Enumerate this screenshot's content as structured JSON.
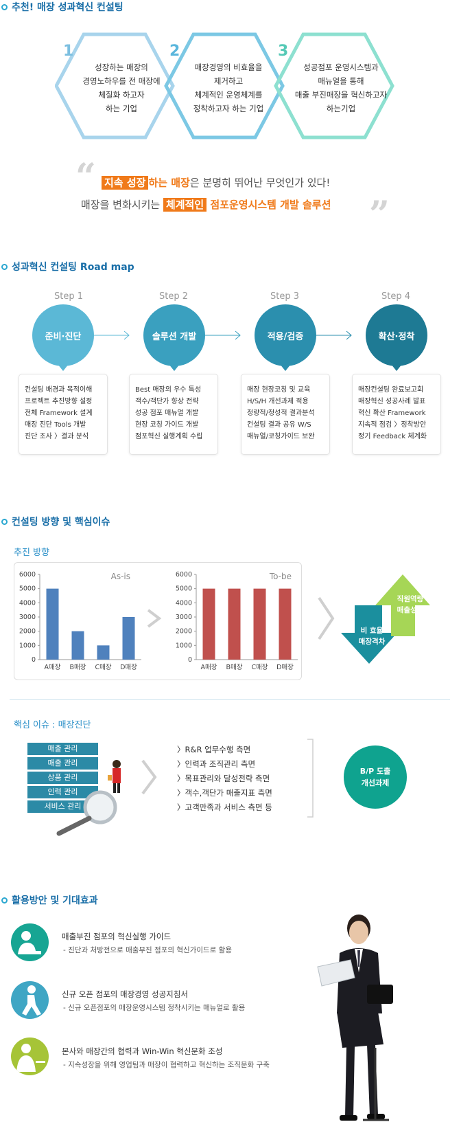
{
  "sections": {
    "recommend_title": "추천! 매장 성과혁신 컨설팅",
    "roadmap_title": "성과혁신 컨설팅 Road map",
    "direction_title": "컨설팅 방향 및 핵심이슈",
    "effects_title": "활용방안 및 기대효과"
  },
  "hexagons": [
    {
      "num": "1",
      "lines": [
        "성장하는 매장의",
        "경영노하우를 전 매장에",
        "체질화 하고자",
        "하는 기업"
      ],
      "color": "#a8d4ec"
    },
    {
      "num": "2",
      "lines": [
        "매장경영의 비효율을",
        "제거하고",
        "체계적인 운영체계를",
        "정착하고자 하는 기업"
      ],
      "color": "#7cc8e4"
    },
    {
      "num": "3",
      "lines": [
        "성공점포 운영시스템과",
        "매뉴얼을 통해",
        "매출 부진매장을 혁신하고자",
        "하는기업"
      ],
      "color": "#8de0d0"
    }
  ],
  "quote": {
    "line1_box": "지속 성장",
    "line1_orange": "하는 매장",
    "line1_rest": "은 분명히 뛰어난 무엇인가 있다!",
    "line2_prefix": "매장을 변화시키는 ",
    "line2_box": "체계적인",
    "line2_orange": " 점포운영시스템 개발 솔루션"
  },
  "roadmap": [
    {
      "step": "Step 1",
      "name": "준비·진단",
      "color": "#5bb8d6",
      "items": [
        "컨설팅 배경과 목적이해",
        "프로젝트 추진방향 설정",
        "전체 Framework 설계",
        "매장 진단 Tools 개발",
        "진단 조사 〉결과 분석"
      ]
    },
    {
      "step": "Step 2",
      "name": "솔루션 개발",
      "color": "#3aa0bf",
      "items": [
        "Best 매장의 우수 특성",
        "객수/객단가 향상 전략",
        "성공 점포 매뉴얼 개발",
        "현장 코칭 가이드 개발",
        "점포혁신 실행계획 수립"
      ]
    },
    {
      "step": "Step 3",
      "name": "적용/검증",
      "color": "#2b8fae",
      "items": [
        "매장 현장코칭 및 교육",
        "H/S/H 개선과제 적용",
        "정량적/정성적 결과분석",
        "컨설팅 결과 공유 W/S",
        "매뉴얼/코칭가이드 보완"
      ]
    },
    {
      "step": "Step 4",
      "name": "확산·정착",
      "color": "#1e7a94",
      "items": [
        "매장컨설팅 완료보고회",
        "매장혁신 성공사례 발표",
        "혁신 확산 Framework",
        "지속적 점검 〉정착방안",
        "정기 Feedback 체계화"
      ]
    }
  ],
  "direction": {
    "subtitle": "추진 방향",
    "arrow_down_label": [
      "비 효율",
      "매장격차"
    ],
    "arrow_up_label": [
      "직원역량",
      "매출성과"
    ]
  },
  "chart_data": [
    {
      "type": "bar",
      "title": "As-is",
      "categories": [
        "A매장",
        "B매장",
        "C매장",
        "D매장"
      ],
      "values": [
        5000,
        2000,
        1000,
        3000
      ],
      "ylim": [
        0,
        6000
      ],
      "yticks": [
        "0",
        "1000",
        "2000",
        "3000",
        "4000",
        "5000",
        "6000"
      ],
      "color": "#4f81bd",
      "grid": false
    },
    {
      "type": "bar",
      "title": "To-be",
      "categories": [
        "A매장",
        "B매장",
        "C매장",
        "D매장"
      ],
      "values": [
        5000,
        5000,
        5000,
        5000
      ],
      "ylim": [
        0,
        6000
      ],
      "yticks": [
        "0",
        "1000",
        "2000",
        "3000",
        "4000",
        "5000",
        "6000"
      ],
      "color": "#c0504d",
      "grid": false
    }
  ],
  "issues": {
    "subtitle": "핵심 이슈 : 매장진단",
    "bars": [
      "매출 관리",
      "매출 관리",
      "상품 관리",
      "인력 관리",
      "서비스 관리"
    ],
    "items": [
      "〉R&R 업무수행 측면",
      "〉인력과 조직관리 측면",
      "〉목표관리와 달성전략 측면",
      "〉객수,객단가 매출지표 측면",
      "〉고객만족과 서비스 측면 등"
    ],
    "result": [
      "B/P 도출",
      "개선과제"
    ]
  },
  "effects": [
    {
      "title": "매출부진 점포의 혁신실행 가이드",
      "desc": "- 진단과 처방전으로 매출부진 점포의 혁신가이드로 활용",
      "color": "#17a593"
    },
    {
      "title": "신규 오픈 점포의 매장경영 성공지침서",
      "desc": "- 신규 오픈점포의 매장운영시스템 정착시키는 매뉴얼로 활용",
      "color": "#3fa6c4"
    },
    {
      "title": "본사와 매장간의 협력과 Win-Win 혁신문화 조성",
      "desc": "- 지속성장을 위해 영업팀과 매장이 협력하고 혁신하는 조직문화 구축",
      "color": "#a6c437"
    }
  ]
}
